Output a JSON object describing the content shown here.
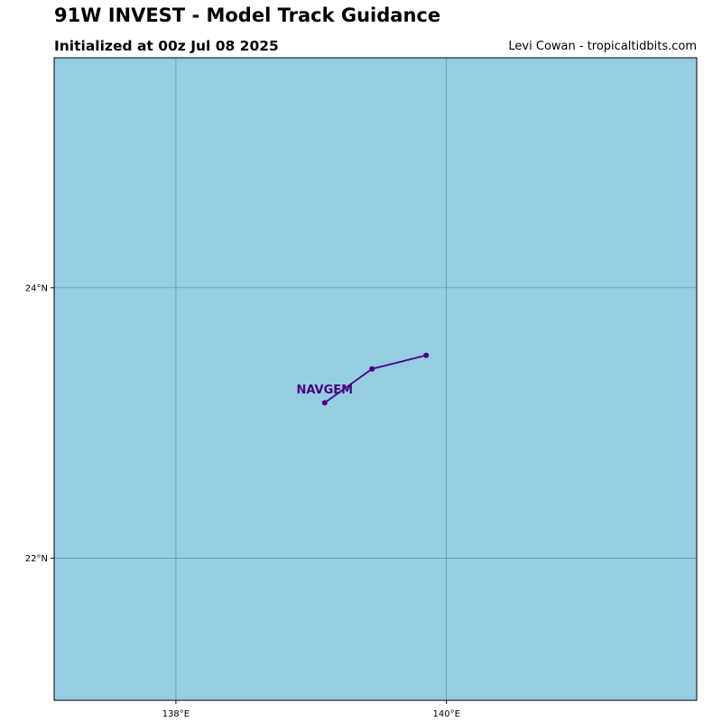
{
  "header": {
    "title": "91W INVEST - Model Track Guidance",
    "subtitle": "Initialized at 00z Jul 08 2025",
    "credit": "Levi Cowan - tropicaltidbits.com"
  },
  "map": {
    "ocean_color": "#95cde3",
    "grid_color": "#5a7f8c",
    "lon_range": [
      137.1,
      141.85
    ],
    "lat_range": [
      20.95,
      25.7
    ],
    "lat_ticks": [
      {
        "value": 24,
        "label": "24°N"
      },
      {
        "value": 22,
        "label": "22°N"
      }
    ],
    "lon_ticks": [
      {
        "value": 138,
        "label": "138°E"
      },
      {
        "value": 140,
        "label": "140°E"
      }
    ]
  },
  "tracks": [
    {
      "model": "NAVGEM",
      "color": "#4b0082",
      "points": [
        {
          "lon": 139.1,
          "lat": 23.15
        },
        {
          "lon": 139.45,
          "lat": 23.4
        },
        {
          "lon": 139.85,
          "lat": 23.5
        }
      ]
    }
  ]
}
